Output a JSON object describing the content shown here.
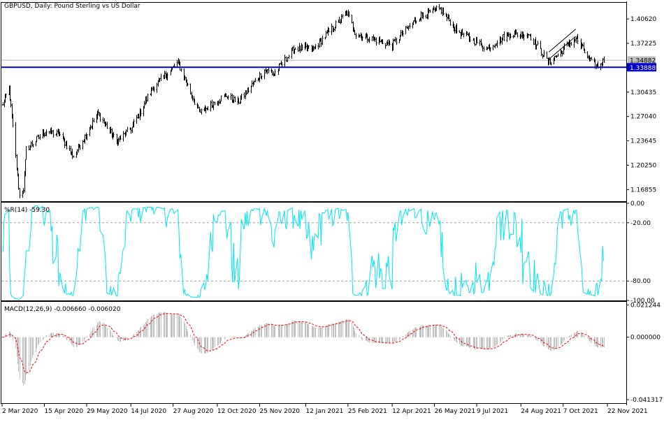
{
  "header": {
    "symbol_title": "GBPUSD, Daily:  Pound Sterling vs US Dollar",
    "wr_title": "%R(14) -59.30",
    "macd_title": "MACD(12,26,9) -0.006660 -0.006020"
  },
  "colors": {
    "candle": "#000000",
    "support_line": "#0000c8",
    "wr_line": "#00e5ee",
    "macd_hist": "#c0c0c0",
    "macd_signal": "#ff0000",
    "price_label_bg": "#0000c8",
    "bid_label_bg": "#c0c0c0"
  },
  "chart_data": [
    {
      "type": "candlestick",
      "title": "GBPUSD, Daily:  Pound Sterling vs US Dollar",
      "yticks": [
        "1.40620",
        "1.37225",
        "1.33888",
        "1.30435",
        "1.27040",
        "1.23645",
        "1.20250",
        "1.16855"
      ],
      "ylim": [
        1.1524,
        1.4277
      ],
      "horizontal_line": 1.33888,
      "current_price_label": "1.33888",
      "bid_label": "1.34882",
      "bid_value": 1.34882,
      "channel": {
        "from": [
          "2021-09-22",
          1.35
        ],
        "to": [
          "2021-10-20",
          1.382
        ],
        "offset": 0.01
      },
      "anchors": [
        [
          "2020-03-02",
          1.285
        ],
        [
          "2020-03-09",
          1.31
        ],
        [
          "2020-03-17",
          1.2
        ],
        [
          "2020-03-20",
          1.16
        ],
        [
          "2020-03-24",
          1.17
        ],
        [
          "2020-03-27",
          1.225
        ],
        [
          "2020-04-08",
          1.24
        ],
        [
          "2020-04-17",
          1.25
        ],
        [
          "2020-05-01",
          1.245
        ],
        [
          "2020-05-15",
          1.215
        ],
        [
          "2020-06-10",
          1.275
        ],
        [
          "2020-06-29",
          1.235
        ],
        [
          "2020-07-15",
          1.255
        ],
        [
          "2020-08-05",
          1.31
        ],
        [
          "2020-09-01",
          1.345
        ],
        [
          "2020-09-23",
          1.275
        ],
        [
          "2020-10-20",
          1.3
        ],
        [
          "2020-11-02",
          1.29
        ],
        [
          "2020-11-30",
          1.335
        ],
        [
          "2020-12-10",
          1.33
        ],
        [
          "2020-12-31",
          1.365
        ],
        [
          "2021-01-20",
          1.365
        ],
        [
          "2021-02-24",
          1.415
        ],
        [
          "2021-03-05",
          1.385
        ],
        [
          "2021-04-12",
          1.37
        ],
        [
          "2021-05-10",
          1.41
        ],
        [
          "2021-06-01",
          1.42
        ],
        [
          "2021-06-18",
          1.39
        ],
        [
          "2021-07-20",
          1.365
        ],
        [
          "2021-08-10",
          1.385
        ],
        [
          "2021-09-01",
          1.385
        ],
        [
          "2021-09-22",
          1.345
        ],
        [
          "2021-10-20",
          1.38
        ],
        [
          "2021-11-05",
          1.345
        ],
        [
          "2021-11-12",
          1.34
        ],
        [
          "2021-11-18",
          1.348
        ]
      ]
    },
    {
      "type": "line",
      "title": "%R(14) -59.30",
      "yticks": [
        "0.00",
        "-20.00",
        "-80.00",
        "-100.00"
      ],
      "ylim": [
        -100,
        0
      ],
      "levels": [
        -20,
        -80
      ],
      "last_value": -59.3
    },
    {
      "type": "bar",
      "title": "MACD(12,26,9) -0.006660 -0.006020",
      "yticks": [
        "0.021244",
        "0.000000",
        "-0.041317"
      ],
      "ylim": [
        -0.0436,
        0.0229
      ],
      "last_macd": -0.00666,
      "last_signal": -0.00602
    }
  ],
  "x_axis": {
    "ticks": [
      {
        "label": "2 Mar 2020",
        "date": "2020-03-02"
      },
      {
        "label": "15 Apr 2020",
        "date": "2020-04-15"
      },
      {
        "label": "29 May 2020",
        "date": "2020-05-29"
      },
      {
        "label": "14 Jul 2020",
        "date": "2020-07-14"
      },
      {
        "label": "27 Aug 2020",
        "date": "2020-08-27"
      },
      {
        "label": "12 Oct 2020",
        "date": "2020-10-12"
      },
      {
        "label": "25 Nov 2020",
        "date": "2020-11-25"
      },
      {
        "label": "12 Jan 2021",
        "date": "2021-01-12"
      },
      {
        "label": "25 Feb 2021",
        "date": "2021-02-25"
      },
      {
        "label": "12 Apr 2021",
        "date": "2021-04-12"
      },
      {
        "label": "26 May 2021",
        "date": "2021-05-26"
      },
      {
        "label": "9 Jul 2021",
        "date": "2021-07-09"
      },
      {
        "label": "24 Aug 2021",
        "date": "2021-08-24"
      },
      {
        "label": "7 Oct 2021",
        "date": "2021-10-07"
      },
      {
        "label": "22 Nov 2021",
        "date": "2021-11-22"
      }
    ]
  }
}
